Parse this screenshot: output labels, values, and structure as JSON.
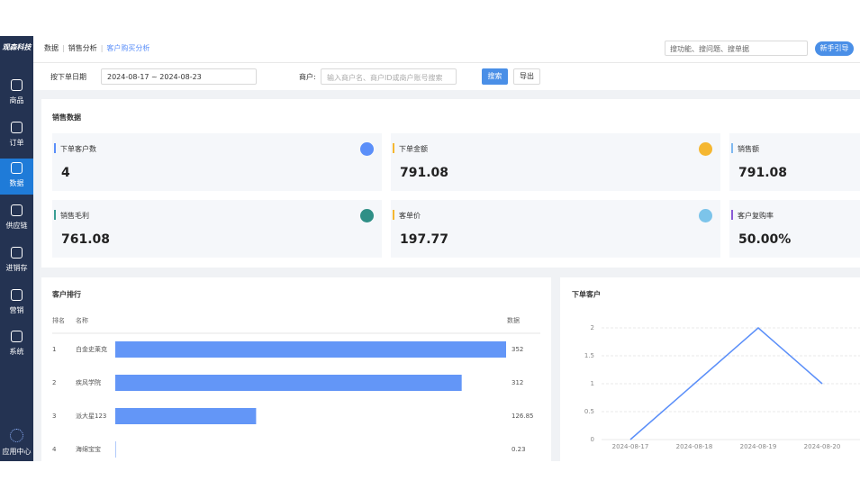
{
  "sidebar": {
    "logo": "观森科技",
    "items": [
      "商品",
      "订单",
      "数据",
      "供应链",
      "进销存",
      "营销",
      "系统"
    ],
    "active": 2,
    "bottom": "应用中心"
  },
  "header": {
    "breadcrumb": [
      "数据",
      "销售分析",
      "客户购买分析"
    ],
    "search_placeholder": "搜功能、搜问题、搜单据",
    "guide_button": "新手引导"
  },
  "filters": {
    "date_type": "按下单日期",
    "date_range": "2024-08-17 ~ 2024-08-23",
    "merchant_label": "商户:",
    "merchant_placeholder": "输入商户名、商户ID或商户账号搜索",
    "search_button": "搜索",
    "export_button": "导出"
  },
  "sales": {
    "title": "销售数据",
    "stats": [
      {
        "label": "下单客户数",
        "value": 4,
        "color": "#5b8ff9",
        "icon_color": "#5b8ff9"
      },
      {
        "label": "下单金额",
        "value": 791.08,
        "color": "#f5b731",
        "icon_color": "#f5b731"
      },
      {
        "label": "销售额",
        "value": 791.08,
        "color": "#7fb8f0"
      },
      {
        "label": "销售毛利",
        "value": 761.08,
        "color": "#3a9e94",
        "icon_color": "#2f8f86"
      },
      {
        "label": "客单价",
        "value": 197.77,
        "color": "#f5b731",
        "icon_color": "#7cc4ea"
      },
      {
        "label": "客户复购率",
        "value": "50.00%",
        "color": "#8a5bd6"
      }
    ]
  },
  "chart_data": [
    {
      "type": "bar",
      "orientation": "horizontal",
      "title": "客户排行",
      "headers": [
        "排名",
        "名称",
        "数据"
      ],
      "ranks": [
        1,
        2,
        3,
        4
      ],
      "categories": [
        "白金史莱克",
        "疾风学院",
        "派大星123",
        "海绵宝宝"
      ],
      "values": [
        352,
        312,
        126.85,
        0.23
      ],
      "color": "#6396f7"
    },
    {
      "type": "line",
      "title": "下单客户",
      "x": [
        "2024-08-17",
        "2024-08-18",
        "2024-08-19",
        "2024-08-20"
      ],
      "values": [
        0,
        1,
        2,
        1
      ],
      "ylim": [
        0,
        2
      ],
      "yticks": [
        0,
        0.5,
        1,
        1.5,
        2
      ],
      "color": "#5b8ff9",
      "grid": true
    }
  ]
}
